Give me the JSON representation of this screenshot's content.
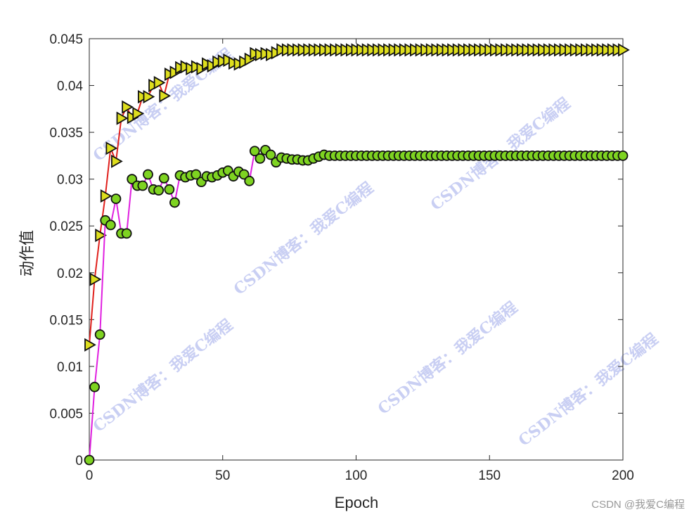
{
  "chart_data": {
    "type": "line",
    "xlabel": "Epoch",
    "ylabel": "动作值",
    "xlim": [
      0,
      200
    ],
    "ylim": [
      0,
      0.045
    ],
    "xticks": [
      "0",
      "50",
      "100",
      "150",
      "200"
    ],
    "yticks": [
      "0",
      "0.005",
      "0.01",
      "0.015",
      "0.02",
      "0.025",
      "0.03",
      "0.035",
      "0.04",
      "0.045"
    ],
    "grid": false,
    "x": [
      0,
      2,
      4,
      6,
      8,
      10,
      12,
      14,
      16,
      18,
      20,
      22,
      24,
      26,
      28,
      30,
      32,
      34,
      36,
      38,
      40,
      42,
      44,
      46,
      48,
      50,
      52,
      54,
      56,
      58,
      60,
      62,
      64,
      66,
      68,
      70,
      72,
      74,
      76,
      78,
      80,
      82,
      84,
      86,
      88,
      90,
      92,
      94,
      96,
      98,
      100,
      102,
      104,
      106,
      108,
      110,
      112,
      114,
      116,
      118,
      120,
      122,
      124,
      126,
      128,
      130,
      132,
      134,
      136,
      138,
      140,
      142,
      144,
      146,
      148,
      150,
      152,
      154,
      156,
      158,
      160,
      162,
      164,
      166,
      168,
      170,
      172,
      174,
      176,
      178,
      180,
      182,
      184,
      186,
      188,
      190,
      192,
      194,
      196,
      198,
      200
    ],
    "series": [
      {
        "line_color": "#e0201c",
        "marker": "triangle-right",
        "marker_fill": "#dede1e",
        "values": [
          0.0123,
          0.0193,
          0.024,
          0.0282,
          0.0333,
          0.0319,
          0.0365,
          0.0377,
          0.0366,
          0.037,
          0.0388,
          0.0388,
          0.04,
          0.0403,
          0.0389,
          0.0412,
          0.0414,
          0.0419,
          0.042,
          0.0418,
          0.042,
          0.0418,
          0.0423,
          0.0421,
          0.0425,
          0.0426,
          0.0427,
          0.0424,
          0.0423,
          0.0425,
          0.0428,
          0.0434,
          0.0433,
          0.0434,
          0.0433,
          0.0435,
          0.0438,
          0.0438,
          0.0438,
          0.0438,
          0.0438,
          0.0438,
          0.0438,
          0.0438,
          0.0438,
          0.0438,
          0.0438,
          0.0438,
          0.0438,
          0.0438,
          0.0438,
          0.0438,
          0.0438,
          0.0438,
          0.0438,
          0.0438,
          0.0438,
          0.0438,
          0.0438,
          0.0438,
          0.0438,
          0.0438,
          0.0438,
          0.0438,
          0.0438,
          0.0438,
          0.0438,
          0.0438,
          0.0438,
          0.0438,
          0.0438,
          0.0438,
          0.0438,
          0.0438,
          0.0438,
          0.0438,
          0.0438,
          0.0438,
          0.0438,
          0.0438,
          0.0438,
          0.0438,
          0.0438,
          0.0438,
          0.0438,
          0.0438,
          0.0438,
          0.0438,
          0.0438,
          0.0438,
          0.0438,
          0.0438,
          0.0438,
          0.0438,
          0.0438,
          0.0438,
          0.0438,
          0.0438,
          0.0438,
          0.0438,
          0.0438
        ]
      },
      {
        "line_color": "#e020e0",
        "marker": "circle",
        "marker_fill": "#7ed321",
        "values": [
          0,
          0.0078,
          0.0134,
          0.0256,
          0.0251,
          0.0279,
          0.0242,
          0.0242,
          0.03,
          0.0293,
          0.0293,
          0.0305,
          0.0289,
          0.0288,
          0.0301,
          0.0289,
          0.0275,
          0.0304,
          0.0302,
          0.0304,
          0.0305,
          0.0297,
          0.0303,
          0.0302,
          0.0304,
          0.0307,
          0.0309,
          0.0303,
          0.0308,
          0.0305,
          0.0298,
          0.033,
          0.0322,
          0.0331,
          0.0326,
          0.0318,
          0.0323,
          0.0322,
          0.0321,
          0.0321,
          0.032,
          0.032,
          0.0322,
          0.0324,
          0.0326,
          0.0325,
          0.0325,
          0.0325,
          0.0325,
          0.0325,
          0.0325,
          0.0325,
          0.0325,
          0.0325,
          0.0325,
          0.0325,
          0.0325,
          0.0325,
          0.0325,
          0.0325,
          0.0325,
          0.0325,
          0.0325,
          0.0325,
          0.0325,
          0.0325,
          0.0325,
          0.0325,
          0.0325,
          0.0325,
          0.0325,
          0.0325,
          0.0325,
          0.0325,
          0.0325,
          0.0325,
          0.0325,
          0.0325,
          0.0325,
          0.0325,
          0.0325,
          0.0325,
          0.0325,
          0.0325,
          0.0325,
          0.0325,
          0.0325,
          0.0325,
          0.0325,
          0.0325,
          0.0325,
          0.0325,
          0.0325,
          0.0325,
          0.0325,
          0.0325,
          0.0325,
          0.0325,
          0.0325,
          0.0325,
          0.0325
        ]
      }
    ]
  },
  "watermark": {
    "text": "CSDN博客：我爱C编程",
    "credit": "CSDN @我爱C编程"
  }
}
